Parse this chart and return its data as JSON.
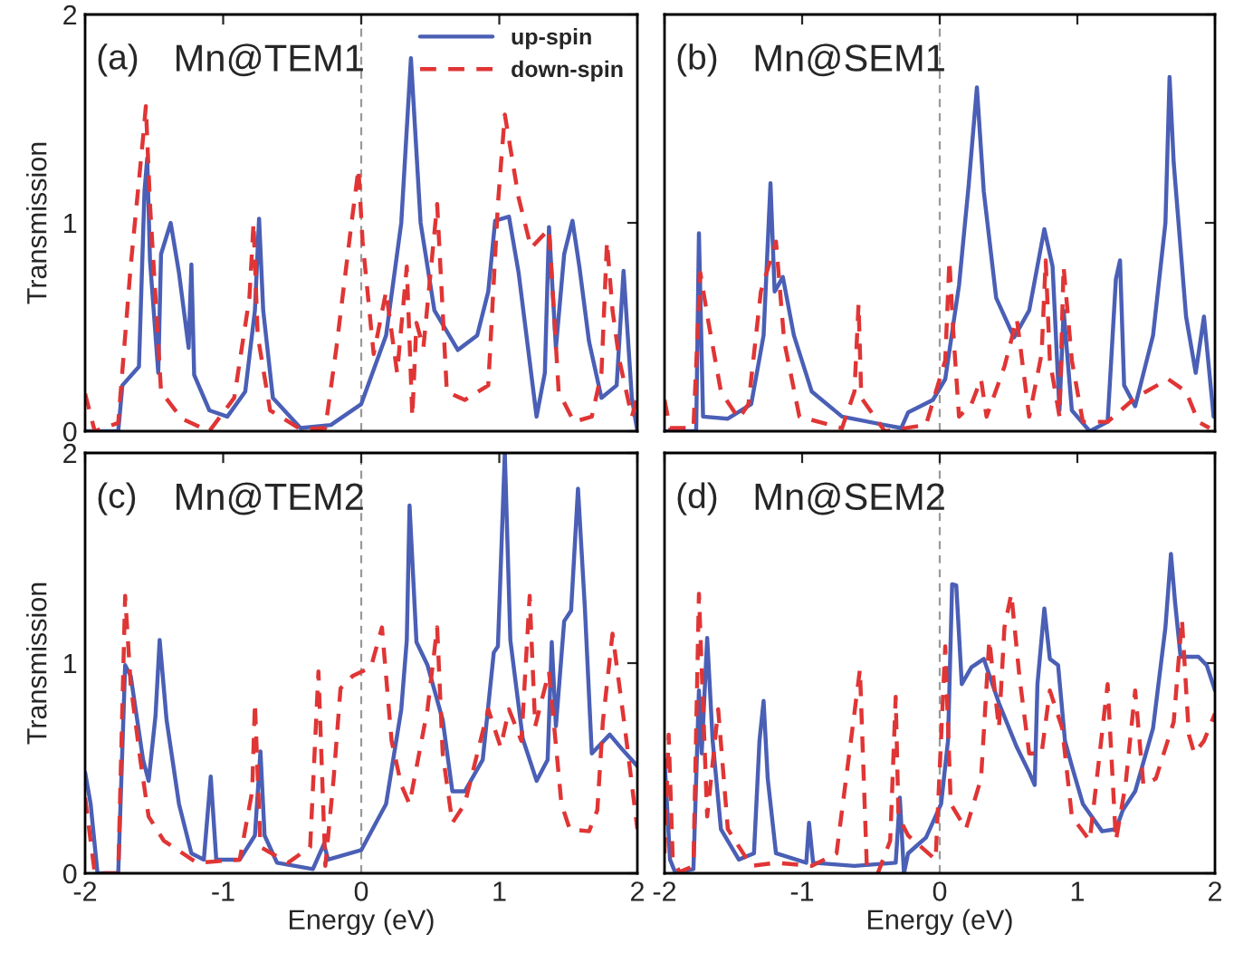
{
  "chart_data": [
    {
      "type": "line",
      "annotations": [
        "(a)",
        "Mn@TEM1"
      ],
      "ylabel": "Transmission",
      "xlim": [
        -2,
        2
      ],
      "ylim": [
        0,
        2
      ],
      "xticks": [
        -2,
        -1,
        0,
        1,
        2
      ],
      "yticks": [
        0,
        1,
        2
      ],
      "tick_labels": "y",
      "grid": false,
      "legend": "top right",
      "ref_lines": [
        {
          "axis": "x",
          "value": 0,
          "color": "#999999",
          "line_style": "dashed"
        }
      ],
      "series": [
        {
          "name": "up-spin",
          "color": "#4a5fb5",
          "line_style": "solid",
          "x": [
            -2,
            -1.76,
            -1.73,
            -1.61,
            -1.57,
            -1.55,
            -1.53,
            -1.47,
            -1.45,
            -1.38,
            -1.32,
            -1.25,
            -1.23,
            -1.21,
            -1.1,
            -0.97,
            -0.84,
            -0.77,
            -0.74,
            -0.71,
            -0.64,
            -0.44,
            -0.22,
            0,
            0.18,
            0.29,
            0.36,
            0.43,
            0.53,
            0.7,
            0.84,
            0.92,
            0.97,
            1.02,
            1.07,
            1.14,
            1.27,
            1.33,
            1.36,
            1.41,
            1.47,
            1.53,
            1.58,
            1.65,
            1.74,
            1.85,
            1.9,
            1.96,
            2
          ],
          "values": [
            0,
            0,
            0.22,
            0.31,
            1.15,
            1.31,
            0.82,
            0.28,
            0.85,
            1.0,
            0.76,
            0.4,
            0.8,
            0.27,
            0.1,
            0.07,
            0.19,
            0.58,
            1.02,
            0.58,
            0.16,
            0.015,
            0.03,
            0.13,
            0.46,
            1.0,
            1.79,
            1.0,
            0.58,
            0.39,
            0.46,
            0.67,
            1.01,
            1.02,
            1.03,
            0.76,
            0.07,
            0.28,
            0.98,
            0.4,
            0.85,
            1.01,
            0.79,
            0.43,
            0.16,
            0.22,
            0.77,
            0.16,
            0
          ]
        },
        {
          "name": "down-spin",
          "color": "#e03535",
          "line_style": "dashed",
          "x": [
            -2,
            -1.93,
            -1.76,
            -1.67,
            -1.58,
            -1.56,
            -1.53,
            -1.45,
            -1.3,
            -1.1,
            -0.92,
            -0.81,
            -0.78,
            -0.75,
            -0.66,
            -0.44,
            -0.26,
            -0.18,
            -0.07,
            -0.02,
            0.01,
            0.09,
            0.18,
            0.26,
            0.33,
            0.37,
            0.4,
            0.45,
            0.55,
            0.62,
            0.75,
            0.92,
            0.99,
            1.04,
            1.14,
            1.23,
            1.36,
            1.43,
            1.54,
            1.67,
            1.74,
            1.78,
            1.82,
            1.87,
            1.96,
            2
          ],
          "values": [
            0.18,
            0,
            0.04,
            0.79,
            1.41,
            1.56,
            1.09,
            0.19,
            0.06,
            0,
            0.16,
            0.64,
            1.0,
            0.46,
            0.1,
            0.01,
            0.015,
            0.4,
            1.0,
            1.26,
            0.91,
            0.37,
            0.67,
            0.28,
            0.79,
            0.07,
            0.52,
            0.4,
            1.09,
            0.19,
            0.15,
            0.22,
            1.09,
            1.52,
            1.12,
            0.88,
            0.97,
            0.19,
            0.045,
            0.07,
            0.28,
            0.91,
            0.58,
            0.34,
            0.07,
            0.16
          ]
        }
      ]
    },
    {
      "type": "line",
      "annotations": [
        "(b)",
        "Mn@SEM1"
      ],
      "xlim": [
        -2,
        2
      ],
      "ylim": [
        0,
        2
      ],
      "xticks": [
        -2,
        -1,
        0,
        1,
        2
      ],
      "yticks": [
        0,
        1,
        2
      ],
      "tick_labels": false,
      "grid": false,
      "ref_lines": [
        {
          "axis": "x",
          "value": 0,
          "color": "#999999",
          "line_style": "dashed"
        }
      ],
      "series": [
        {
          "color": "#4a5fb5",
          "line_style": "solid",
          "x": [
            -2,
            -1.77,
            -1.75,
            -1.72,
            -1.54,
            -1.37,
            -1.28,
            -1.23,
            -1.2,
            -1.14,
            -1.06,
            -0.93,
            -0.71,
            -0.4,
            -0.28,
            -0.23,
            -0.05,
            0.04,
            0.14,
            0.21,
            0.27,
            0.32,
            0.41,
            0.54,
            0.65,
            0.76,
            0.82,
            0.87,
            0.9,
            0.96,
            1.09,
            1.22,
            1.28,
            1.31,
            1.34,
            1.42,
            1.55,
            1.64,
            1.67,
            1.7,
            1.79,
            1.86,
            1.92,
            1.99
          ],
          "values": [
            0,
            0,
            0.95,
            0.07,
            0.06,
            0.13,
            0.46,
            1.19,
            0.67,
            0.74,
            0.46,
            0.19,
            0.07,
            0.03,
            0.015,
            0.09,
            0.15,
            0.25,
            0.7,
            1.18,
            1.65,
            1.15,
            0.64,
            0.45,
            0.58,
            0.97,
            0.79,
            0.1,
            0.58,
            0.1,
            0,
            0.045,
            0.73,
            0.82,
            0.22,
            0.12,
            0.46,
            1.0,
            1.7,
            1.29,
            0.55,
            0.28,
            0.55,
            0.07
          ]
        },
        {
          "color": "#e03535",
          "line_style": "dashed",
          "x": [
            -2,
            -1.96,
            -1.79,
            -1.74,
            -1.68,
            -1.59,
            -1.46,
            -1.39,
            -1.3,
            -1.19,
            -1.13,
            -1.02,
            -0.71,
            -0.62,
            -0.59,
            -0.57,
            -0.4,
            -0.1,
            0.04,
            0.07,
            0.1,
            0.14,
            0.23,
            0.3,
            0.34,
            0.47,
            0.56,
            0.65,
            0.74,
            0.77,
            0.8,
            0.87,
            0.9,
            0.96,
            1.04,
            1.22,
            1.42,
            1.66,
            1.79,
            1.88,
            1.96
          ],
          "values": [
            0.15,
            0.015,
            0.015,
            0.76,
            0.52,
            0.19,
            0.06,
            0.13,
            0.67,
            0.91,
            0.43,
            0.07,
            0.015,
            0.19,
            0.61,
            0.16,
            0,
            0.03,
            0.34,
            0.82,
            0.46,
            0.07,
            0.13,
            0.25,
            0.07,
            0.31,
            0.54,
            0.07,
            0.37,
            0.82,
            0.34,
            0.07,
            0.79,
            0.34,
            0.045,
            0.045,
            0.16,
            0.25,
            0.19,
            0.045,
            0.015
          ]
        }
      ]
    },
    {
      "type": "line",
      "annotations": [
        "(c)",
        "Mn@TEM2"
      ],
      "xlabel": "Energy (eV)",
      "ylabel": "Transmission",
      "xlim": [
        -2,
        2
      ],
      "ylim": [
        0,
        2
      ],
      "xticks": [
        -2,
        -1,
        0,
        1,
        2
      ],
      "yticks": [
        0,
        1,
        2
      ],
      "grid": false,
      "ref_lines": [
        {
          "axis": "x",
          "value": 0,
          "color": "#999999",
          "line_style": "dashed"
        }
      ],
      "series": [
        {
          "color": "#4a5fb5",
          "line_style": "solid",
          "x": [
            -2,
            -1.96,
            -1.91,
            -1.76,
            -1.71,
            -1.67,
            -1.58,
            -1.54,
            -1.49,
            -1.46,
            -1.41,
            -1.32,
            -1.23,
            -1.14,
            -1.09,
            -1.05,
            -0.88,
            -0.77,
            -0.73,
            -0.7,
            -0.61,
            -0.35,
            -0.27,
            -0.24,
            0,
            0.18,
            0.29,
            0.33,
            0.35,
            0.4,
            0.48,
            0.59,
            0.66,
            0.75,
            0.88,
            0.96,
            0.99,
            1.04,
            1.08,
            1.17,
            1.27,
            1.35,
            1.38,
            1.41,
            1.47,
            1.52,
            1.57,
            1.62,
            1.67,
            1.8,
            1.89,
            2
          ],
          "values": [
            0.48,
            0.33,
            0,
            0,
            0.99,
            0.94,
            0.54,
            0.44,
            0.75,
            1.11,
            0.73,
            0.33,
            0.095,
            0.065,
            0.46,
            0.065,
            0.065,
            0.18,
            0.58,
            0.18,
            0.05,
            0.02,
            0.14,
            0.065,
            0.11,
            0.33,
            0.78,
            1.11,
            1.75,
            1.1,
            0.99,
            0.73,
            0.39,
            0.39,
            0.54,
            1.05,
            1.08,
            2.0,
            1.11,
            0.64,
            0.44,
            0.54,
            1.1,
            0.7,
            1.2,
            1.25,
            1.83,
            1.26,
            0.57,
            0.66,
            0.59,
            0.51
          ]
        },
        {
          "color": "#e03535",
          "line_style": "dashed",
          "x": [
            -2,
            -1.93,
            -1.76,
            -1.71,
            -1.67,
            -1.6,
            -1.54,
            -1.43,
            -1.19,
            -0.88,
            -0.79,
            -0.77,
            -0.73,
            -0.53,
            -0.37,
            -0.31,
            -0.26,
            -0.2,
            -0.15,
            -0.06,
            0.07,
            0.15,
            0.22,
            0.29,
            0.35,
            0.48,
            0.55,
            0.59,
            0.66,
            0.75,
            0.92,
            1.01,
            1.07,
            1.16,
            1.22,
            1.26,
            1.36,
            1.45,
            1.51,
            1.65,
            1.71,
            1.75,
            1.82,
            1.91,
            2
          ],
          "values": [
            0.36,
            0,
            0,
            1.32,
            0.9,
            0.54,
            0.27,
            0.155,
            0.05,
            0.065,
            0.39,
            0.81,
            0.125,
            0.05,
            0.125,
            0.96,
            0.035,
            0.45,
            0.88,
            0.94,
            0.98,
            1.17,
            0.63,
            0.42,
            0.33,
            0.78,
            1.17,
            0.57,
            0.24,
            0.33,
            0.78,
            0.6,
            0.78,
            0.63,
            1.32,
            0.7,
            0.96,
            0.33,
            0.21,
            0.2,
            0.3,
            0.72,
            1.14,
            0.69,
            0.21
          ]
        }
      ]
    },
    {
      "type": "line",
      "annotations": [
        "(d)",
        "Mn@SEM2"
      ],
      "xlabel": "Energy (eV)",
      "xlim": [
        -2,
        2
      ],
      "ylim": [
        0,
        2
      ],
      "xticks": [
        -2,
        -1,
        0,
        1,
        2
      ],
      "yticks": [
        0,
        1,
        2
      ],
      "tick_labels": "x",
      "grid": false,
      "ref_lines": [
        {
          "axis": "x",
          "value": 0,
          "color": "#999999",
          "line_style": "dashed"
        }
      ],
      "series": [
        {
          "color": "#4a5fb5",
          "line_style": "solid",
          "x": [
            -2,
            -1.96,
            -1.92,
            -1.79,
            -1.75,
            -1.73,
            -1.69,
            -1.65,
            -1.59,
            -1.46,
            -1.35,
            -1.31,
            -1.28,
            -1.25,
            -1.19,
            -0.97,
            -0.95,
            -0.92,
            -0.62,
            -0.32,
            -0.29,
            -0.26,
            -0.23,
            -0.1,
            0.01,
            0.06,
            0.09,
            0.12,
            0.16,
            0.23,
            0.32,
            0.43,
            0.56,
            0.65,
            0.69,
            0.71,
            0.76,
            0.8,
            0.86,
            0.91,
            0.96,
            1.04,
            1.18,
            1.28,
            1.33,
            1.42,
            1.55,
            1.64,
            1.68,
            1.71,
            1.75,
            1.88,
            1.94,
            2
          ],
          "values": [
            0.54,
            0.065,
            0,
            0.02,
            0.87,
            0.57,
            1.12,
            0.63,
            0.21,
            0.065,
            0.095,
            0.63,
            0.82,
            0.45,
            0.095,
            0.05,
            0.24,
            0.05,
            0.035,
            0.05,
            0.36,
            0,
            0.095,
            0.17,
            0.33,
            0.63,
            1.375,
            1.37,
            0.9,
            0.98,
            1.02,
            0.81,
            0.6,
            0.48,
            0.42,
            0.9,
            1.26,
            1.02,
            0.99,
            0.63,
            0.51,
            0.33,
            0.2,
            0.21,
            0.3,
            0.39,
            0.69,
            1.17,
            1.52,
            1.29,
            1.03,
            1.03,
            0.99,
            0.87
          ]
        },
        {
          "color": "#e03535",
          "line_style": "dashed",
          "x": [
            -2,
            -1.97,
            -1.94,
            -1.89,
            -1.79,
            -1.75,
            -1.69,
            -1.61,
            -1.54,
            -1.37,
            -1.19,
            -0.93,
            -0.75,
            -0.64,
            -0.58,
            -0.53,
            -0.45,
            -0.36,
            -0.32,
            -0.3,
            -0.23,
            -0.03,
            0.04,
            0.08,
            0.19,
            0.3,
            0.36,
            0.43,
            0.47,
            0.52,
            0.58,
            0.65,
            0.74,
            0.8,
            0.89,
            0.96,
            1.09,
            1.22,
            1.28,
            1.35,
            1.42,
            1.48,
            1.57,
            1.7,
            1.76,
            1.81,
            1.85,
            1.92,
            2
          ],
          "values": [
            0.095,
            0.66,
            0.065,
            0.006,
            0.035,
            1.33,
            0.27,
            0.78,
            0.21,
            0.035,
            0.05,
            0.035,
            0.095,
            0.66,
            0.97,
            0.035,
            0,
            0.155,
            0.84,
            0.27,
            0.18,
            0.065,
            1.08,
            0.33,
            0.21,
            0.45,
            1.11,
            0.69,
            1.17,
            1.33,
            0.93,
            0.57,
            0.57,
            0.87,
            0.69,
            0.27,
            0.155,
            0.9,
            0.155,
            0.42,
            0.87,
            0.42,
            0.45,
            0.72,
            1.21,
            0.66,
            0.57,
            0.63,
            0.76
          ]
        }
      ]
    }
  ]
}
